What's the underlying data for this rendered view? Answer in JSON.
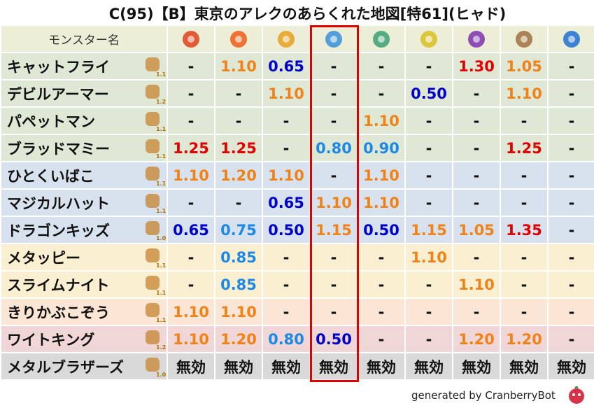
{
  "title": "C(95)【B】東京のアレクのあらくれた地図[特61](ヒャド)",
  "header": {
    "name": "モンスター名",
    "bg": "#eceed8"
  },
  "rows": [
    {
      "name": "キャットフライ",
      "level": "1.1",
      "bg": "#dfe8d5",
      "cells": [
        "-",
        "1.10",
        "0.65",
        "-",
        "-",
        "-",
        "1.30",
        "1.05",
        "-"
      ]
    },
    {
      "name": "デビルアーマー",
      "level": "1.2",
      "bg": "#dfe8d5",
      "cells": [
        "-",
        "-",
        "1.10",
        "-",
        "-",
        "0.50",
        "-",
        "1.10",
        "-"
      ]
    },
    {
      "name": "パペットマン",
      "level": "1.1",
      "bg": "#dfe8d5",
      "cells": [
        "-",
        "-",
        "-",
        "-",
        "1.10",
        "-",
        "-",
        "-",
        "-"
      ]
    },
    {
      "name": "ブラッドマミー",
      "level": "1.1",
      "bg": "#dfe8d5",
      "cells": [
        "1.25",
        "1.25",
        "-",
        "0.80",
        "0.90",
        "-",
        "-",
        "1.25",
        "-"
      ]
    },
    {
      "name": "ひとくいばこ",
      "level": "1.1",
      "bg": "#d7e2ee",
      "cells": [
        "1.10",
        "1.20",
        "1.10",
        "-",
        "1.10",
        "-",
        "-",
        "-",
        "-"
      ]
    },
    {
      "name": "マジカルハット",
      "level": "1.1",
      "bg": "#d7e2ee",
      "cells": [
        "-",
        "-",
        "0.65",
        "1.10",
        "1.10",
        "-",
        "-",
        "-",
        "-"
      ]
    },
    {
      "name": "ドラゴンキッズ",
      "level": "1.0",
      "bg": "#d7e2ee",
      "cells": [
        "0.65",
        "0.75",
        "0.50",
        "1.15",
        "0.50",
        "1.15",
        "1.05",
        "1.35",
        "-"
      ]
    },
    {
      "name": "メタッピー",
      "level": "1.1",
      "bg": "#fbefd2",
      "cells": [
        "-",
        "0.85",
        "-",
        "-",
        "-",
        "1.10",
        "-",
        "-",
        "-"
      ]
    },
    {
      "name": "スライムナイト",
      "level": "1.1",
      "bg": "#fbefd2",
      "cells": [
        "-",
        "0.85",
        "-",
        "-",
        "-",
        "-",
        "1.10",
        "-",
        "-"
      ]
    },
    {
      "name": "きりかぶこぞう",
      "level": "1.1",
      "bg": "#fbe6d6",
      "cells": [
        "1.10",
        "1.10",
        "-",
        "-",
        "-",
        "-",
        "-",
        "-",
        "-"
      ]
    },
    {
      "name": "ワイトキング",
      "level": "1.2",
      "bg": "#f0d6d6",
      "cells": [
        "1.10",
        "1.20",
        "0.80",
        "0.50",
        "-",
        "-",
        "1.20",
        "1.20",
        "-"
      ]
    },
    {
      "name": "メタルブラザーズ",
      "level": "1.0",
      "bg": "#d9d9d9",
      "cells": [
        "無効",
        "無効",
        "無効",
        "無効",
        "無効",
        "無効",
        "無効",
        "無効",
        "無効"
      ]
    }
  ],
  "footer": "generated by CranberryBot"
}
